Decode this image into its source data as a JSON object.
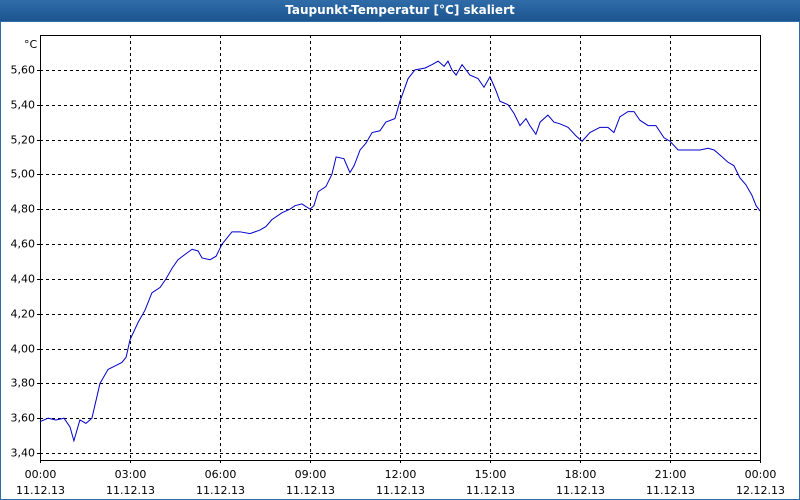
{
  "window_title": "Taupunkt-Temperatur [°C] skaliert",
  "chart_data": {
    "type": "line",
    "y_unit_label": "°C",
    "x": [
      0,
      0.27,
      0.53,
      0.8,
      1,
      1.13,
      1.33,
      1.53,
      1.73,
      2,
      2.27,
      2.5,
      2.73,
      2.87,
      3,
      3.27,
      3.5,
      3.73,
      4,
      4.2,
      4.4,
      4.6,
      4.83,
      5.07,
      5.27,
      5.4,
      5.67,
      5.87,
      6.07,
      6.4,
      6.67,
      7,
      7.33,
      7.53,
      7.73,
      8.07,
      8.33,
      8.5,
      8.73,
      9,
      9.13,
      9.27,
      9.53,
      9.73,
      9.87,
      10.13,
      10.33,
      10.47,
      10.67,
      10.87,
      11.07,
      11.33,
      11.53,
      11.83,
      12,
      12.27,
      12.5,
      12.83,
      13.07,
      13.27,
      13.47,
      13.6,
      13.73,
      13.87,
      14.07,
      14.33,
      14.6,
      14.8,
      15,
      15.2,
      15.33,
      15.6,
      15.8,
      16,
      16.2,
      16.33,
      16.53,
      16.67,
      16.93,
      17.13,
      17.33,
      17.6,
      17.87,
      18.07,
      18.33,
      18.67,
      18.93,
      19.13,
      19.33,
      19.6,
      19.8,
      20,
      20.27,
      20.53,
      20.8,
      21,
      21.27,
      21.6,
      22,
      22.27,
      22.47,
      22.67,
      22.93,
      23.13,
      23.33,
      23.53,
      23.73,
      23.87,
      24
    ],
    "series": [
      {
        "name": "Taupunkt",
        "color": "#0000cc",
        "values": [
          3.58,
          3.6,
          3.59,
          3.6,
          3.55,
          3.47,
          3.59,
          3.57,
          3.6,
          3.8,
          3.88,
          3.9,
          3.92,
          3.95,
          4.05,
          4.15,
          4.22,
          4.32,
          4.35,
          4.4,
          4.46,
          4.51,
          4.54,
          4.57,
          4.56,
          4.52,
          4.51,
          4.53,
          4.6,
          4.67,
          4.67,
          4.66,
          4.68,
          4.7,
          4.74,
          4.78,
          4.8,
          4.82,
          4.83,
          4.8,
          4.82,
          4.9,
          4.93,
          5.0,
          5.1,
          5.09,
          5.01,
          5.05,
          5.14,
          5.18,
          5.24,
          5.25,
          5.3,
          5.32,
          5.42,
          5.55,
          5.6,
          5.61,
          5.63,
          5.65,
          5.62,
          5.65,
          5.6,
          5.57,
          5.63,
          5.57,
          5.55,
          5.5,
          5.56,
          5.48,
          5.42,
          5.4,
          5.35,
          5.28,
          5.32,
          5.28,
          5.23,
          5.3,
          5.34,
          5.3,
          5.29,
          5.27,
          5.22,
          5.19,
          5.24,
          5.27,
          5.27,
          5.24,
          5.33,
          5.36,
          5.36,
          5.31,
          5.28,
          5.28,
          5.21,
          5.19,
          5.14,
          5.14,
          5.14,
          5.15,
          5.14,
          5.11,
          5.07,
          5.05,
          4.98,
          4.94,
          4.88,
          4.82,
          4.79
        ]
      }
    ],
    "xlim": [
      0,
      24
    ],
    "xticks": [
      {
        "value": 0,
        "label": "00:00",
        "date": "11.12.13"
      },
      {
        "value": 3,
        "label": "03:00",
        "date": "11.12.13"
      },
      {
        "value": 6,
        "label": "06:00",
        "date": "11.12.13"
      },
      {
        "value": 9,
        "label": "09:00",
        "date": "11.12.13"
      },
      {
        "value": 12,
        "label": "12:00",
        "date": "11.12.13"
      },
      {
        "value": 15,
        "label": "15:00",
        "date": "11.12.13"
      },
      {
        "value": 18,
        "label": "18:00",
        "date": "11.12.13"
      },
      {
        "value": 21,
        "label": "21:00",
        "date": "11.12.13"
      },
      {
        "value": 24,
        "label": "00:00",
        "date": "12.12.13"
      }
    ],
    "ylim": [
      3.36,
      5.8
    ],
    "yticks": [
      {
        "value": 3.4,
        "label": "3,40"
      },
      {
        "value": 3.6,
        "label": "3,60"
      },
      {
        "value": 3.8,
        "label": "3,80"
      },
      {
        "value": 4.0,
        "label": "4,00"
      },
      {
        "value": 4.2,
        "label": "4,20"
      },
      {
        "value": 4.4,
        "label": "4,40"
      },
      {
        "value": 4.6,
        "label": "4,60"
      },
      {
        "value": 4.8,
        "label": "4,80"
      },
      {
        "value": 5.0,
        "label": "5,00"
      },
      {
        "value": 5.2,
        "label": "5,20"
      },
      {
        "value": 5.4,
        "label": "5,40"
      },
      {
        "value": 5.6,
        "label": "5,60"
      }
    ],
    "grid": true
  }
}
